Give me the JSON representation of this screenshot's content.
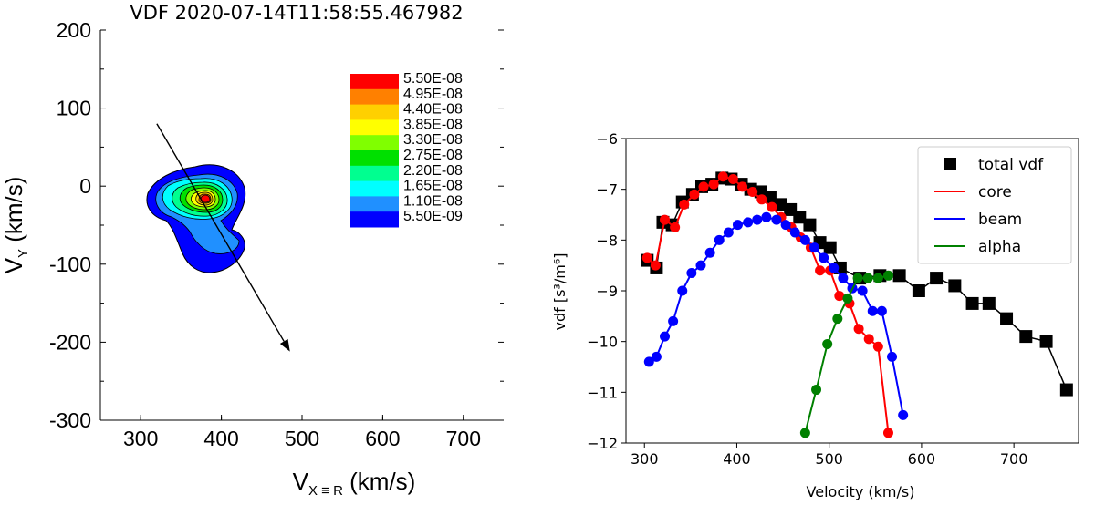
{
  "chart_data": [
    {
      "type": "contour",
      "title": "VDF 2020-07-14T11:58:55.467982",
      "ylabel_main": "V",
      "ylabel_sub": "Y",
      "ylabel_unit": " (km/s)",
      "xlabel_main": "V",
      "xlabel_sub": "X ≡ R",
      "xlabel_unit": " (km/s)",
      "xlim": [
        250,
        750
      ],
      "ylim": [
        -300,
        200
      ],
      "xticks": [
        300,
        400,
        500,
        600,
        700
      ],
      "yticks": [
        200,
        100,
        0,
        -100,
        -200,
        -300
      ],
      "colorbar": {
        "levels": [
          "5.50E-08",
          "4.95E-08",
          "4.40E-08",
          "3.85E-08",
          "3.30E-08",
          "2.75E-08",
          "2.20E-08",
          "1.65E-08",
          "1.10E-08",
          "5.50E-09"
        ],
        "colors": [
          "#ff0000",
          "#ff8000",
          "#ffd000",
          "#ffff00",
          "#80ff00",
          "#00e000",
          "#00ff90",
          "#00ffff",
          "#2090ff",
          "#0000ff"
        ]
      },
      "arrow": {
        "from": [
          320,
          80
        ],
        "to": [
          485,
          -212
        ]
      },
      "peak": {
        "x": 378,
        "y": -22,
        "value": 5.5e-08
      }
    },
    {
      "type": "line",
      "xlabel": "Velocity (km/s)",
      "ylabel": "vdf [s³/m⁶]",
      "xlim": [
        280,
        770
      ],
      "ylim": [
        -12,
        -6
      ],
      "xticks": [
        300,
        400,
        500,
        600,
        700
      ],
      "yticks": [
        -6,
        -7,
        -8,
        -9,
        -10,
        -11,
        -12
      ],
      "legend_position": "upper right",
      "series": [
        {
          "name": "total vdf",
          "color": "#000000",
          "marker": "square",
          "x": [
            303,
            313,
            320,
            330,
            341,
            352,
            362,
            373,
            384,
            394,
            405,
            415,
            426,
            436,
            447,
            458,
            468,
            479,
            490,
            501,
            512,
            533,
            555,
            576,
            597,
            616,
            636,
            655,
            673,
            692,
            713,
            735,
            757
          ],
          "y": [
            -8.4,
            -8.55,
            -7.65,
            -7.7,
            -7.25,
            -7.1,
            -6.95,
            -6.9,
            -6.78,
            -6.8,
            -6.9,
            -7.0,
            -7.05,
            -7.15,
            -7.3,
            -7.4,
            -7.55,
            -7.7,
            -8.05,
            -8.15,
            -8.55,
            -8.75,
            -8.7,
            -8.7,
            -9.0,
            -8.75,
            -8.9,
            -9.25,
            -9.25,
            -9.55,
            -9.9,
            -10.0,
            -10.95
          ]
        },
        {
          "name": "core",
          "color": "#ff0000",
          "x": [
            303,
            312,
            322,
            333,
            343,
            354,
            364,
            375,
            385,
            396,
            406,
            417,
            427,
            438,
            448,
            459,
            469,
            480,
            490,
            501,
            511,
            522,
            532,
            543,
            553,
            564
          ],
          "y": [
            -8.35,
            -8.5,
            -7.6,
            -7.75,
            -7.3,
            -7.1,
            -6.95,
            -6.9,
            -6.75,
            -6.8,
            -6.95,
            -7.05,
            -7.2,
            -7.35,
            -7.55,
            -7.75,
            -7.95,
            -8.15,
            -8.6,
            -8.6,
            -9.1,
            -9.25,
            -9.75,
            -9.95,
            -10.1,
            -11.8
          ]
        },
        {
          "name": "beam",
          "color": "#0000ff",
          "x": [
            305,
            313,
            322,
            331,
            341,
            351,
            361,
            371,
            381,
            391,
            401,
            412,
            422,
            432,
            443,
            453,
            463,
            474,
            484,
            494,
            505,
            515,
            525,
            536,
            547,
            557,
            568,
            580
          ],
          "y": [
            -10.4,
            -10.3,
            -9.9,
            -9.6,
            -9.0,
            -8.65,
            -8.5,
            -8.25,
            -8.0,
            -7.85,
            -7.7,
            -7.65,
            -7.6,
            -7.55,
            -7.6,
            -7.7,
            -7.85,
            -8.0,
            -8.15,
            -8.35,
            -8.55,
            -8.75,
            -8.95,
            -9.0,
            -9.4,
            -9.4,
            -10.3,
            -11.45
          ]
        },
        {
          "name": "alpha",
          "color": "#008000",
          "x": [
            474,
            486,
            498,
            509,
            520,
            531,
            542,
            553,
            564
          ],
          "y": [
            -11.8,
            -10.95,
            -10.05,
            -9.55,
            -9.15,
            -8.75,
            -8.75,
            -8.75,
            -8.7
          ]
        }
      ]
    }
  ]
}
